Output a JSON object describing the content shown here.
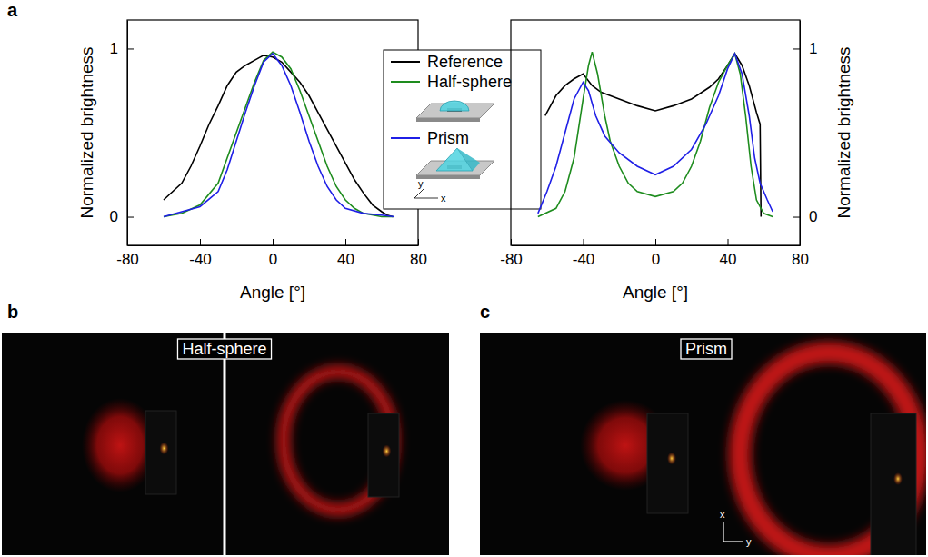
{
  "panel_labels": [
    "a",
    "b",
    "c"
  ],
  "chart_data": [
    {
      "type": "line",
      "x_label": "Angle [°]",
      "y_label": "Normalized brightness",
      "xlim": [
        -80,
        80
      ],
      "xticks": [
        -80,
        -40,
        0,
        40,
        80
      ],
      "ylim": [
        -0.17,
        1.17
      ],
      "yticks": [
        0,
        1
      ],
      "legend": "right",
      "legend_axes": [
        "y",
        "x"
      ],
      "series": [
        {
          "name": "Reference",
          "color": "#000000",
          "x": [
            -60,
            -55,
            -50,
            -45,
            -40,
            -35,
            -30,
            -25,
            -20,
            -15,
            -10,
            -5,
            0,
            5,
            10,
            15,
            20,
            25,
            30,
            35,
            40,
            45,
            50,
            55,
            60,
            63,
            66
          ],
          "values": [
            0.1,
            0.15,
            0.2,
            0.3,
            0.42,
            0.55,
            0.66,
            0.78,
            0.86,
            0.9,
            0.93,
            0.96,
            0.95,
            0.92,
            0.86,
            0.8,
            0.72,
            0.62,
            0.52,
            0.42,
            0.32,
            0.22,
            0.14,
            0.07,
            0.03,
            0.01,
            0
          ]
        },
        {
          "name": "Half-sphere",
          "color": "#1e8c1e",
          "x": [
            -60,
            -50,
            -40,
            -30,
            -25,
            -20,
            -15,
            -10,
            -5,
            0,
            5,
            10,
            15,
            20,
            25,
            30,
            35,
            40,
            45,
            50,
            60,
            67
          ],
          "values": [
            0,
            0.02,
            0.07,
            0.2,
            0.35,
            0.5,
            0.65,
            0.8,
            0.93,
            0.98,
            0.95,
            0.88,
            0.75,
            0.6,
            0.45,
            0.3,
            0.18,
            0.1,
            0.05,
            0.02,
            0,
            0
          ]
        },
        {
          "name": "Prism",
          "color": "#1f1fe6",
          "x": [
            -60,
            -50,
            -40,
            -30,
            -25,
            -20,
            -15,
            -10,
            -5,
            0,
            5,
            10,
            15,
            20,
            25,
            30,
            35,
            40,
            50,
            60,
            67
          ],
          "values": [
            0,
            0.03,
            0.06,
            0.15,
            0.28,
            0.45,
            0.62,
            0.78,
            0.92,
            0.97,
            0.9,
            0.78,
            0.62,
            0.45,
            0.3,
            0.18,
            0.1,
            0.05,
            0.02,
            0.01,
            0
          ]
        }
      ]
    },
    {
      "type": "line",
      "x_label": "Angle [°]",
      "y_label": "Normalized brightness",
      "xlim": [
        -80,
        80
      ],
      "xticks": [
        -80,
        -40,
        0,
        40,
        80
      ],
      "ylim": [
        -0.17,
        1.17
      ],
      "yticks": [
        0,
        1
      ],
      "series": [
        {
          "color": "#000000",
          "x": [
            -61,
            -58,
            -55,
            -50,
            -45,
            -40,
            -35,
            -30,
            -20,
            -10,
            0,
            10,
            20,
            30,
            35,
            40,
            44,
            48,
            52,
            56,
            58,
            58.5
          ],
          "values": [
            0.6,
            0.66,
            0.72,
            0.78,
            0.82,
            0.85,
            0.78,
            0.74,
            0.7,
            0.66,
            0.63,
            0.66,
            0.7,
            0.77,
            0.82,
            0.9,
            0.97,
            0.9,
            0.78,
            0.62,
            0.55,
            0
          ]
        },
        {
          "color": "#1e8c1e",
          "x": [
            -65,
            -55,
            -50,
            -45,
            -40,
            -37,
            -35,
            -32,
            -28,
            -25,
            -20,
            -15,
            -10,
            0,
            10,
            15,
            20,
            25,
            30,
            35,
            40,
            44,
            47,
            50,
            53,
            56,
            60,
            65
          ],
          "values": [
            0,
            0.05,
            0.15,
            0.35,
            0.7,
            0.9,
            0.98,
            0.85,
            0.6,
            0.45,
            0.3,
            0.2,
            0.15,
            0.12,
            0.15,
            0.2,
            0.3,
            0.45,
            0.65,
            0.8,
            0.9,
            0.97,
            0.85,
            0.6,
            0.3,
            0.1,
            0.02,
            0
          ]
        },
        {
          "color": "#1f1fe6",
          "x": [
            -65,
            -60,
            -55,
            -50,
            -45,
            -40,
            -37,
            -33,
            -28,
            -20,
            -10,
            0,
            10,
            20,
            28,
            35,
            40,
            44,
            48,
            52,
            55,
            58,
            62,
            65
          ],
          "values": [
            0.02,
            0.15,
            0.3,
            0.5,
            0.7,
            0.8,
            0.75,
            0.6,
            0.48,
            0.38,
            0.3,
            0.25,
            0.3,
            0.4,
            0.55,
            0.72,
            0.88,
            0.97,
            0.85,
            0.6,
            0.35,
            0.2,
            0.1,
            0.03
          ]
        }
      ]
    }
  ],
  "images": [
    {
      "title": "Half-sphere"
    },
    {
      "title": "Prism",
      "axes": [
        "x",
        "y"
      ]
    }
  ]
}
